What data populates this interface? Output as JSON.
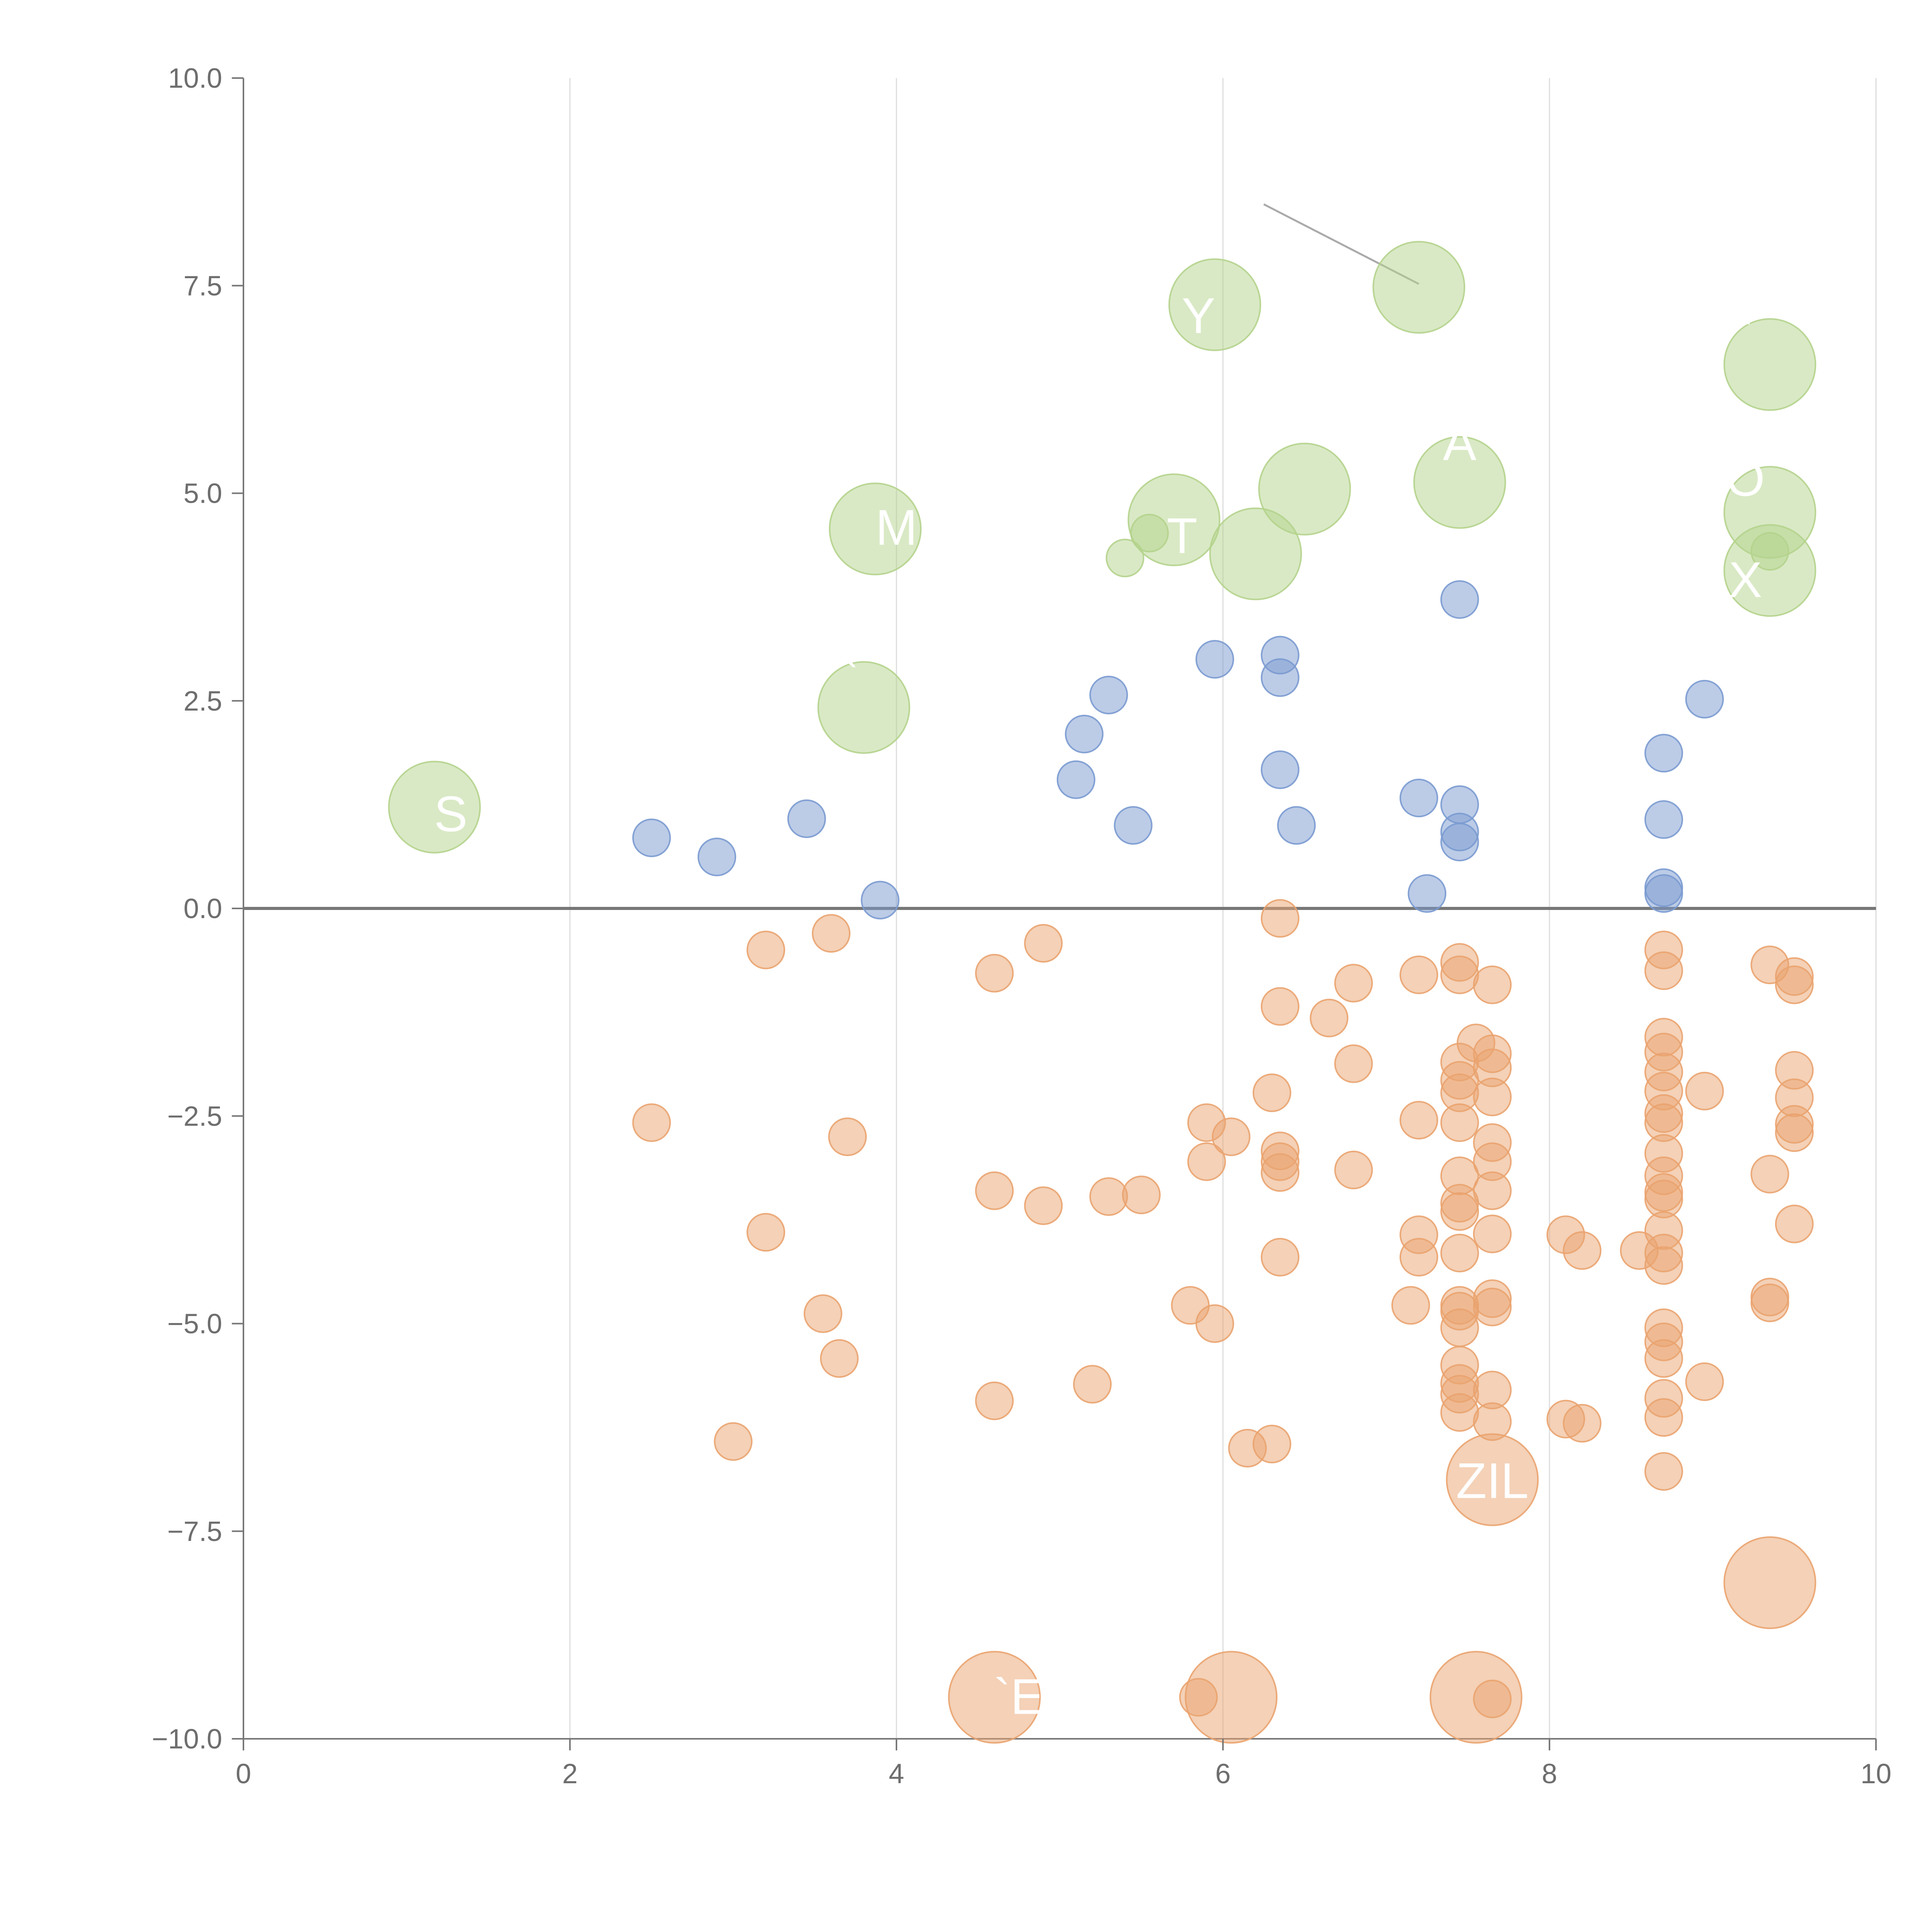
{
  "chart_data": {
    "type": "scatter",
    "title": "",
    "xlabel": "",
    "ylabel": "",
    "xlim": [
      0,
      10
    ],
    "ylim": [
      -10,
      10
    ],
    "x_ticks": [
      "0",
      "2",
      "4",
      "6",
      "8",
      "10"
    ],
    "x_tick_values": [
      0,
      2,
      4,
      6,
      8,
      10
    ],
    "y_ticks": [
      "10.0",
      "7.5",
      "5.0",
      "2.5",
      "0.0",
      "−2.5",
      "−5.0",
      "−7.5",
      "−10.0"
    ],
    "y_tick_values": [
      10,
      7.5,
      5,
      2.5,
      0,
      -2.5,
      -5,
      -7.5,
      -10
    ],
    "vertical_grid": true,
    "horizontal_grid": false,
    "zero_line": true,
    "colors": {
      "small_positive": "#7a9ad0",
      "negative": "#eaa36f",
      "large_positive": "#b4d38c",
      "annotation_line": "#aaaaaa",
      "zero_line": "#777777",
      "axis": "#777777",
      "grid": "#dddddd"
    },
    "series": [
      {
        "color": "#7a9ad0",
        "size": "small",
        "points": [
          [
            2.5,
            0.85
          ],
          [
            2.9,
            0.62
          ],
          [
            3.45,
            1.08
          ],
          [
            3.9,
            0.1
          ],
          [
            5.1,
            1.55
          ],
          [
            5.15,
            2.1
          ],
          [
            5.3,
            2.57
          ],
          [
            5.45,
            1.0
          ],
          [
            5.95,
            3.0
          ],
          [
            6.35,
            3.05
          ],
          [
            6.35,
            2.78
          ],
          [
            6.35,
            1.67
          ],
          [
            6.45,
            1.0
          ],
          [
            7.2,
            1.33
          ],
          [
            7.25,
            0.18
          ],
          [
            7.45,
            3.72
          ],
          [
            7.45,
            1.25
          ],
          [
            7.45,
            0.92
          ],
          [
            7.45,
            0.8
          ],
          [
            8.7,
            1.87
          ],
          [
            8.7,
            1.07
          ],
          [
            8.7,
            0.25
          ],
          [
            8.7,
            0.18
          ],
          [
            8.95,
            2.52
          ]
        ]
      },
      {
        "color": "#eaa36f",
        "size": "small",
        "points": [
          [
            2.5,
            -2.58
          ],
          [
            3.2,
            -0.5
          ],
          [
            3.2,
            -3.9
          ],
          [
            3.0,
            -6.42
          ],
          [
            3.6,
            -0.3
          ],
          [
            3.55,
            -4.88
          ],
          [
            3.65,
            -5.42
          ],
          [
            3.7,
            -2.75
          ],
          [
            4.6,
            -0.78
          ],
          [
            4.6,
            -3.4
          ],
          [
            4.6,
            -5.93
          ],
          [
            4.9,
            -0.42
          ],
          [
            4.9,
            -3.58
          ],
          [
            5.2,
            -5.73
          ],
          [
            5.3,
            -3.47
          ],
          [
            5.5,
            -3.45
          ],
          [
            5.8,
            -4.78
          ],
          [
            5.9,
            -2.58
          ],
          [
            5.9,
            -3.05
          ],
          [
            5.95,
            -5.0
          ],
          [
            6.05,
            -2.75
          ],
          [
            6.15,
            -6.5
          ],
          [
            6.3,
            -6.45
          ],
          [
            6.3,
            -2.22
          ],
          [
            6.35,
            -0.12
          ],
          [
            6.35,
            -1.18
          ],
          [
            6.35,
            -2.92
          ],
          [
            6.35,
            -3.18
          ],
          [
            6.35,
            -3.05
          ],
          [
            6.35,
            -4.2
          ],
          [
            6.65,
            -1.32
          ],
          [
            6.8,
            -0.9
          ],
          [
            6.8,
            -1.87
          ],
          [
            6.8,
            -3.15
          ],
          [
            7.15,
            -4.78
          ],
          [
            7.2,
            -0.8
          ],
          [
            7.2,
            -2.55
          ],
          [
            7.2,
            -3.93
          ],
          [
            7.2,
            -4.2
          ],
          [
            7.45,
            -0.65
          ],
          [
            7.45,
            -0.8
          ],
          [
            7.45,
            -1.85
          ],
          [
            7.45,
            -2.07
          ],
          [
            7.45,
            -2.22
          ],
          [
            7.45,
            -2.58
          ],
          [
            7.45,
            -3.22
          ],
          [
            7.45,
            -3.55
          ],
          [
            7.45,
            -3.65
          ],
          [
            7.45,
            -4.15
          ],
          [
            7.45,
            -4.78
          ],
          [
            7.45,
            -4.85
          ],
          [
            7.45,
            -5.05
          ],
          [
            7.45,
            -5.5
          ],
          [
            7.45,
            -5.72
          ],
          [
            7.45,
            -5.85
          ],
          [
            7.45,
            -6.07
          ],
          [
            7.55,
            -1.62
          ],
          [
            7.65,
            -0.92
          ],
          [
            7.65,
            -1.75
          ],
          [
            7.65,
            -1.92
          ],
          [
            7.65,
            -2.27
          ],
          [
            7.65,
            -2.82
          ],
          [
            7.65,
            -3.05
          ],
          [
            7.65,
            -3.4
          ],
          [
            7.65,
            -3.92
          ],
          [
            7.65,
            -4.7
          ],
          [
            7.65,
            -4.8
          ],
          [
            7.65,
            -5.8
          ],
          [
            7.65,
            -6.18
          ],
          [
            7.65,
            -9.52
          ],
          [
            8.1,
            -3.93
          ],
          [
            8.1,
            -6.15
          ],
          [
            8.2,
            -4.12
          ],
          [
            8.2,
            -6.2
          ],
          [
            8.55,
            -4.12
          ],
          [
            8.7,
            -0.5
          ],
          [
            8.7,
            -0.75
          ],
          [
            8.7,
            -1.55
          ],
          [
            8.7,
            -1.73
          ],
          [
            8.7,
            -1.97
          ],
          [
            8.7,
            -2.2
          ],
          [
            8.7,
            -2.47
          ],
          [
            8.7,
            -2.58
          ],
          [
            8.7,
            -2.95
          ],
          [
            8.7,
            -3.22
          ],
          [
            8.7,
            -3.42
          ],
          [
            8.7,
            -3.5
          ],
          [
            8.7,
            -3.88
          ],
          [
            8.7,
            -4.15
          ],
          [
            8.7,
            -4.3
          ],
          [
            8.7,
            -5.05
          ],
          [
            8.7,
            -5.22
          ],
          [
            8.7,
            -5.42
          ],
          [
            8.7,
            -5.9
          ],
          [
            8.7,
            -6.13
          ],
          [
            8.7,
            -6.78
          ],
          [
            8.95,
            -2.2
          ],
          [
            8.95,
            -5.7
          ],
          [
            9.35,
            -0.68
          ],
          [
            9.35,
            -3.2
          ],
          [
            9.35,
            -4.68
          ],
          [
            9.35,
            -4.75
          ],
          [
            9.5,
            -0.82
          ],
          [
            9.5,
            -0.92
          ],
          [
            9.5,
            -1.95
          ],
          [
            9.5,
            -2.28
          ],
          [
            9.5,
            -2.6
          ],
          [
            9.5,
            -2.7
          ],
          [
            9.5,
            -3.8
          ],
          [
            5.85,
            -9.5
          ]
        ]
      },
      {
        "color": "#b4d38c",
        "size": "small",
        "points": [
          [
            5.4,
            4.22
          ],
          [
            5.55,
            4.52
          ],
          [
            9.35,
            4.3
          ]
        ]
      },
      {
        "color": "#b4d38c",
        "size": "large",
        "points": [
          [
            1.17,
            1.22
          ],
          [
            3.8,
            2.42
          ],
          [
            3.87,
            4.57
          ],
          [
            5.7,
            4.68
          ],
          [
            5.95,
            7.27
          ],
          [
            6.2,
            4.27
          ],
          [
            6.5,
            5.05
          ],
          [
            7.2,
            7.48
          ],
          [
            7.45,
            5.13
          ],
          [
            9.35,
            6.55
          ],
          [
            9.35,
            4.77
          ],
          [
            9.35,
            4.07
          ]
        ]
      },
      {
        "color": "#eaa36f",
        "size": "large",
        "points": [
          [
            4.6,
            -9.5
          ],
          [
            6.05,
            -9.5
          ],
          [
            7.55,
            -9.5
          ],
          [
            7.65,
            -6.88
          ],
          [
            9.35,
            -8.12
          ]
        ]
      }
    ],
    "annotation_line": [
      [
        6.25,
        8.48
      ],
      [
        7.2,
        7.52
      ]
    ],
    "labels": [
      {
        "text": "S",
        "x": 1.27,
        "y": 0.93
      },
      {
        "text": "`",
        "x": 3.72,
        "y": 2.55
      },
      {
        "text": "M",
        "x": 4.0,
        "y": 4.38
      },
      {
        "text": "Y",
        "x": 5.85,
        "y": 6.93
      },
      {
        "text": "T",
        "x": 5.75,
        "y": 4.28
      },
      {
        "text": "A",
        "x": 7.45,
        "y": 5.4
      },
      {
        "text": "`",
        "x": 9.2,
        "y": 6.68
      },
      {
        "text": "O",
        "x": 9.2,
        "y": 4.97
      },
      {
        "text": "X",
        "x": 9.2,
        "y": 3.75
      },
      {
        "text": "ZIL",
        "x": 7.65,
        "y": -7.1
      },
      {
        "text": "`E",
        "x": 4.75,
        "y": -9.7
      }
    ]
  }
}
